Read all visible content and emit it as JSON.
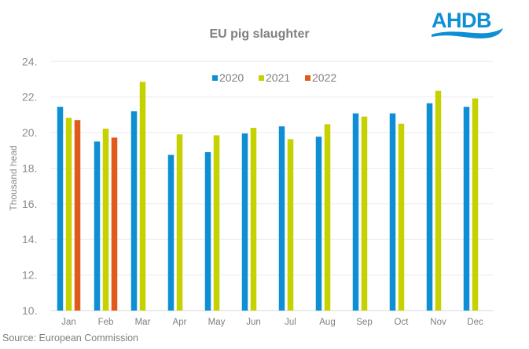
{
  "logo": {
    "text": "AHDB",
    "color": "#0f8fd3"
  },
  "source": "Source: European Commission",
  "chart_data": {
    "type": "bar",
    "title": "EU pig slaughter",
    "xlabel": "",
    "ylabel": "Thousand head",
    "ylim": [
      10,
      24
    ],
    "yticks": [
      10,
      12,
      14,
      16,
      18,
      20,
      22,
      24
    ],
    "ytick_labels": [
      "10.",
      "12.",
      "14.",
      "16.",
      "18.",
      "20.",
      "22.",
      "24."
    ],
    "grid": true,
    "legend_position": "top-center",
    "categories": [
      "Jan",
      "Feb",
      "Mar",
      "Apr",
      "May",
      "Jun",
      "Jul",
      "Aug",
      "Sep",
      "Oct",
      "Nov",
      "Dec"
    ],
    "series": [
      {
        "name": "2020",
        "color": "#0f8fd3",
        "values": [
          21.45,
          19.5,
          21.2,
          18.75,
          18.9,
          19.95,
          20.35,
          19.77,
          21.08,
          21.08,
          21.65,
          21.45
        ]
      },
      {
        "name": "2021",
        "color": "#c5d200",
        "values": [
          20.83,
          20.22,
          22.85,
          19.9,
          19.85,
          20.27,
          19.63,
          20.47,
          20.9,
          20.5,
          22.35,
          21.92
        ]
      },
      {
        "name": "2022",
        "color": "#e05a1b",
        "values": [
          20.7,
          19.72,
          null,
          null,
          null,
          null,
          null,
          null,
          null,
          null,
          null,
          null
        ]
      }
    ]
  }
}
